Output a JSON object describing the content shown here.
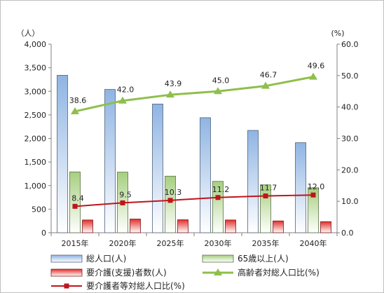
{
  "chart_data": {
    "type": "bar",
    "categories": [
      "2015年",
      "2020年",
      "2025年",
      "2030年",
      "2035年",
      "2040年"
    ],
    "y_left": {
      "unit": "（人）",
      "ylim": [
        0,
        4000
      ],
      "ticks": [
        "0",
        "500",
        "1,000",
        "1,500",
        "2,000",
        "2,500",
        "3,000",
        "3,500",
        "4,000"
      ],
      "tick_values": [
        0,
        500,
        1000,
        1500,
        2000,
        2500,
        3000,
        3500,
        4000
      ]
    },
    "y_right": {
      "unit": "(%)",
      "ylim": [
        0,
        60
      ],
      "ticks": [
        "0.0",
        "10.0",
        "20.0",
        "30.0",
        "40.0",
        "50.0",
        "60.0"
      ],
      "tick_values": [
        0,
        10,
        20,
        30,
        40,
        50,
        60
      ]
    },
    "bar_series": [
      {
        "name": "総人口(人)",
        "values": [
          3340,
          3040,
          2730,
          2440,
          2170,
          1910
        ],
        "color": "#8fb4e3"
      },
      {
        "name": "65歳以上(人)",
        "values": [
          1290,
          1285,
          1200,
          1090,
          1015,
          955
        ],
        "color": "#a6cf7f"
      },
      {
        "name": "要介護(支援)者数(人)",
        "values": [
          270,
          290,
          275,
          270,
          250,
          235
        ],
        "color": "#e0302b"
      }
    ],
    "line_series": [
      {
        "name": "高齢者対総人口比(%)",
        "values": [
          38.6,
          42.0,
          43.9,
          45.0,
          46.7,
          49.6
        ],
        "labels": [
          "38.6",
          "42.0",
          "43.9",
          "45.0",
          "46.7",
          "49.6"
        ],
        "color": "#8fbf4c"
      },
      {
        "name": "要介護者等対総人口比(%)",
        "values": [
          8.4,
          9.5,
          10.3,
          11.2,
          11.7,
          12.0
        ],
        "labels": [
          "8.4",
          "9.5",
          "10.3",
          "11.2",
          "11.7",
          "12.0"
        ],
        "color": "#c0141c"
      }
    ],
    "grid": false,
    "legend_position": "bottom"
  }
}
